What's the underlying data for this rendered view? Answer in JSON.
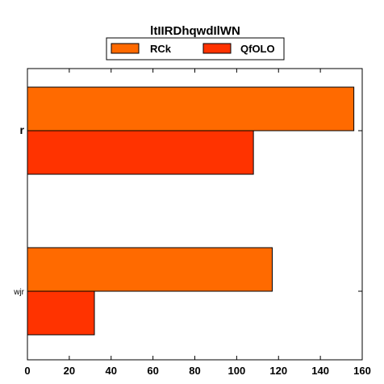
{
  "chart_data": {
    "type": "bar",
    "orientation": "horizontal",
    "title": "ltIIRDhqwdIlWN",
    "xlabel": "",
    "ylabel": "",
    "categories": [
      "r",
      "wjr"
    ],
    "series": [
      {
        "name": "RCk",
        "values": [
          156,
          117
        ],
        "color": "#ff6a00"
      },
      {
        "name": "QfOLO",
        "values": [
          108,
          32
        ],
        "color": "#ff3300"
      }
    ],
    "xlim": [
      0,
      160
    ],
    "xticks": [
      0,
      20,
      40,
      60,
      80,
      100,
      120,
      140,
      160
    ],
    "grid": false,
    "legend_position": "top"
  }
}
